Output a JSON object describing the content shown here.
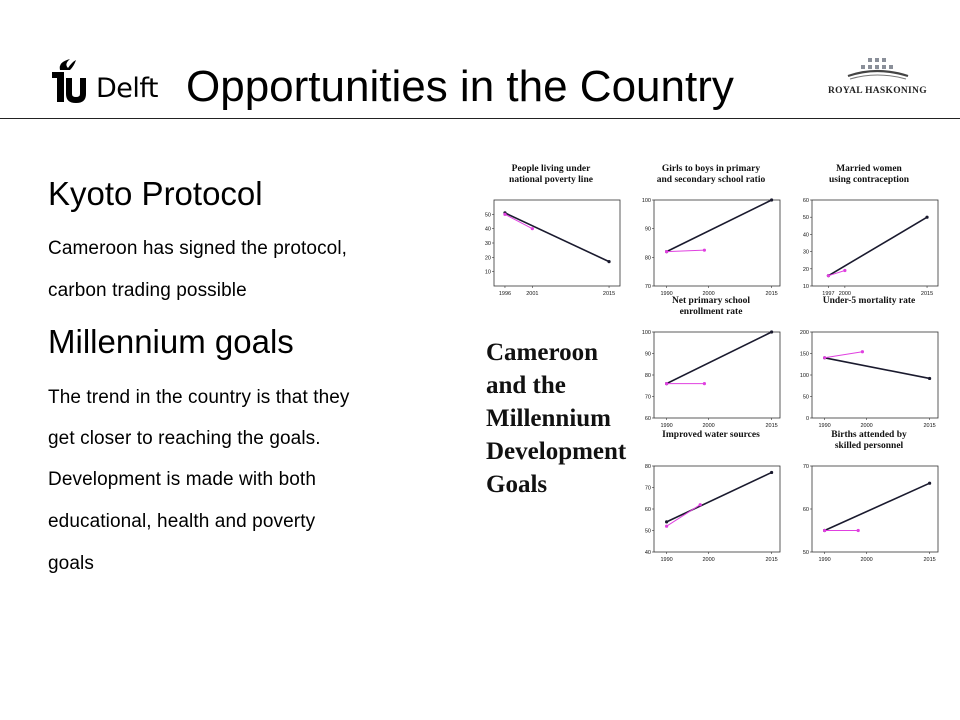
{
  "header": {
    "title": "Opportunities in the Country",
    "tudelft_logo_text": "Delft",
    "royal_haskoning_logo_text": "ROYAL HASKONING"
  },
  "content": {
    "kyoto_heading": "Kyoto Protocol",
    "kyoto_line1": "Cameroon has signed the protocol,",
    "kyoto_line2": "carbon trading possible",
    "mdg_heading": "Millennium goals",
    "mdg_lines": [
      "The trend in the country is that they",
      "get closer to reaching the goals.",
      "Development is made with both",
      "educational, health and poverty",
      "goals"
    ]
  },
  "figure_label": {
    "lines": [
      "Cameroon",
      "and the",
      "Millennium",
      "Development",
      "Goals"
    ]
  },
  "colors": {
    "trend": "#1a1a2e",
    "actual": "#e040e0",
    "axis": "#333333"
  },
  "chart_data": [
    {
      "type": "line",
      "title": [
        "People living under",
        "national poverty line"
      ],
      "x_ticks": [
        "1996",
        "2001",
        "2015"
      ],
      "y_ticks": [
        10,
        20,
        30,
        40,
        50
      ],
      "xlim": [
        1994,
        2017
      ],
      "ylim": [
        0,
        60
      ],
      "series": [
        {
          "values": [
            [
              1996,
              51
            ],
            [
              2015,
              17
            ]
          ]
        },
        {
          "values": [
            [
              1996,
              50
            ],
            [
              2001,
              40
            ]
          ]
        }
      ]
    },
    {
      "type": "line",
      "title": [
        "Girls to boys in primary",
        "and secondary school ratio"
      ],
      "x_ticks": [
        "1990",
        "2000",
        "2015"
      ],
      "y_ticks": [
        70,
        80,
        90,
        100
      ],
      "xlim": [
        1987,
        2017
      ],
      "ylim": [
        70,
        100
      ],
      "series": [
        {
          "values": [
            [
              1990,
              82
            ],
            [
              2015,
              100
            ]
          ]
        },
        {
          "values": [
            [
              1990,
              82
            ],
            [
              1999,
              82.5
            ]
          ]
        }
      ]
    },
    {
      "type": "line",
      "title": [
        "Married women",
        "using contraception"
      ],
      "x_ticks": [
        "1997",
        "2000",
        "2015"
      ],
      "y_ticks": [
        10,
        20,
        30,
        40,
        50,
        60
      ],
      "xlim": [
        1994,
        2017
      ],
      "ylim": [
        10,
        60
      ],
      "series": [
        {
          "values": [
            [
              1997,
              16
            ],
            [
              2015,
              50
            ]
          ]
        },
        {
          "values": [
            [
              1997,
              16
            ],
            [
              2000,
              19
            ]
          ]
        }
      ]
    },
    {
      "type": "line",
      "title": [
        "Net primary school",
        "enrollment rate"
      ],
      "x_ticks": [
        "1990",
        "2000",
        "2015"
      ],
      "y_ticks": [
        60,
        70,
        80,
        90,
        100
      ],
      "xlim": [
        1987,
        2017
      ],
      "ylim": [
        60,
        100
      ],
      "series": [
        {
          "values": [
            [
              1990,
              76
            ],
            [
              2015,
              100
            ]
          ]
        },
        {
          "values": [
            [
              1990,
              76
            ],
            [
              1999,
              76
            ]
          ]
        }
      ]
    },
    {
      "type": "line",
      "title": [
        "Under-5 mortality rate"
      ],
      "x_ticks": [
        "1990",
        "2000",
        "2015"
      ],
      "y_ticks": [
        0,
        50,
        100,
        150,
        200
      ],
      "xlim": [
        1987,
        2017
      ],
      "ylim": [
        0,
        200
      ],
      "series": [
        {
          "values": [
            [
              1990,
              140
            ],
            [
              2015,
              92
            ]
          ]
        },
        {
          "values": [
            [
              1990,
              140
            ],
            [
              1999,
              154
            ]
          ]
        }
      ]
    },
    {
      "type": "line",
      "title": [
        "Improved water sources"
      ],
      "x_ticks": [
        "1990",
        "2000",
        "2015"
      ],
      "y_ticks": [
        40,
        50,
        60,
        70,
        80
      ],
      "xlim": [
        1987,
        2017
      ],
      "ylim": [
        40,
        80
      ],
      "series": [
        {
          "values": [
            [
              1990,
              54
            ],
            [
              2015,
              77
            ]
          ]
        },
        {
          "values": [
            [
              1990,
              52
            ],
            [
              1998,
              62
            ]
          ]
        }
      ]
    },
    {
      "type": "line",
      "title": [
        "Births attended by",
        "skilled personnel"
      ],
      "x_ticks": [
        "1990",
        "2000",
        "2015"
      ],
      "y_ticks": [
        50,
        60,
        70
      ],
      "xlim": [
        1987,
        2017
      ],
      "ylim": [
        50,
        70
      ],
      "series": [
        {
          "values": [
            [
              1990,
              55
            ],
            [
              2015,
              66
            ]
          ]
        },
        {
          "values": [
            [
              1990,
              55
            ],
            [
              1998,
              55
            ]
          ]
        }
      ]
    }
  ]
}
